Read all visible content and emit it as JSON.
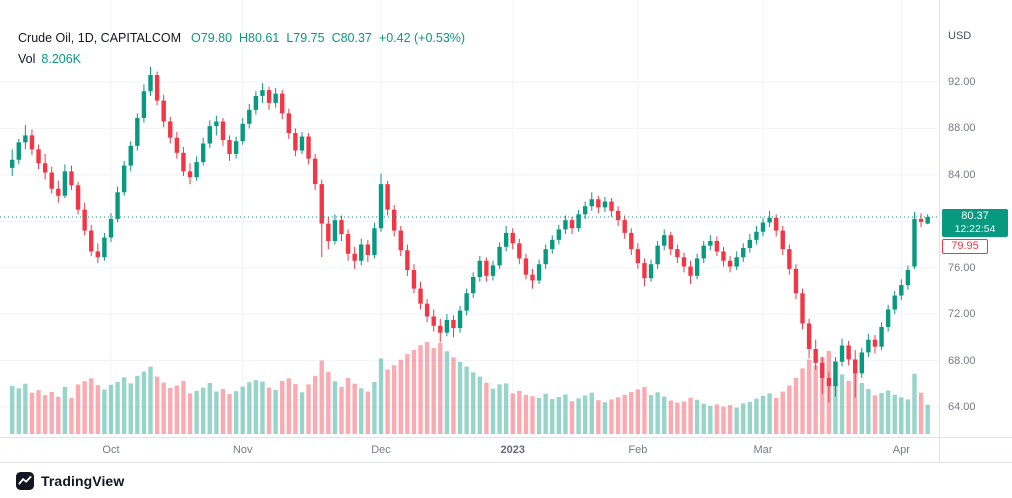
{
  "legend": {
    "title": "Crude Oil, 1D, CAPITALCOM",
    "values": [
      "O79.80",
      "H80.61",
      "L79.75",
      "C80.37",
      "+0.42 (+0.53%)"
    ],
    "vol_label": "Vol",
    "vol_value": "8.206K"
  },
  "price_axis": {
    "currency": "USD",
    "tick_labels": [
      "92.00",
      "88.00",
      "84.00",
      "76.00",
      "72.00",
      "68.00",
      "64.00"
    ],
    "last_price_badge": "80.37",
    "countdown": "12:22:54",
    "prev_close_badge": "79.95"
  },
  "footer": {
    "brand": "TradingView"
  },
  "colors": {
    "up": "#089981",
    "down": "#f23645",
    "grid": "#f0f3fa",
    "border": "#e0e3eb",
    "axis_text": "#787b86",
    "title_text": "#131722"
  },
  "chart_data": {
    "type": "candlestick",
    "title": "Crude Oil, 1D, CAPITALCOM",
    "timeframe": "1D",
    "exchange": "CAPITALCOM",
    "ylabel": "USD",
    "price_grid": [
      64,
      68,
      72,
      76,
      80,
      84,
      88,
      92
    ],
    "ylim": [
      62.6,
      96.4
    ],
    "x_labels": [
      {
        "label": "Oct",
        "index": 15
      },
      {
        "label": "Nov",
        "index": 35
      },
      {
        "label": "Dec",
        "index": 56
      },
      {
        "label": "2023",
        "index": 76,
        "year": true
      },
      {
        "label": "Feb",
        "index": 95
      },
      {
        "label": "Mar",
        "index": 114
      },
      {
        "label": "Apr",
        "index": 135
      }
    ],
    "last_price": 80.37,
    "prev_close": 79.95,
    "change": 0.42,
    "change_pct": 0.53,
    "last_volume_k": 8.206,
    "volume_unit": "K",
    "columns": [
      "open",
      "high",
      "low",
      "close",
      "volume_k"
    ],
    "candles": [
      [
        84.6,
        86.2,
        83.9,
        85.3,
        13.5
      ],
      [
        85.3,
        87.1,
        84.9,
        86.8,
        12.8
      ],
      [
        86.8,
        88.3,
        86.2,
        87.4,
        14.1
      ],
      [
        87.4,
        87.9,
        85.7,
        86.2,
        11.6
      ],
      [
        86.2,
        86.6,
        84.5,
        85.0,
        12.3
      ],
      [
        85.0,
        85.8,
        83.6,
        84.2,
        10.9
      ],
      [
        84.2,
        84.7,
        82.4,
        82.8,
        11.8
      ],
      [
        82.8,
        83.5,
        81.6,
        82.2,
        10.4
      ],
      [
        82.2,
        84.9,
        82.0,
        84.3,
        13.2
      ],
      [
        84.3,
        84.8,
        82.7,
        83.1,
        10.1
      ],
      [
        83.1,
        83.4,
        80.6,
        81.0,
        13.9
      ],
      [
        81.0,
        81.6,
        78.8,
        79.2,
        14.8
      ],
      [
        79.2,
        79.7,
        77.0,
        77.4,
        15.6
      ],
      [
        77.4,
        78.1,
        76.4,
        76.9,
        13.7
      ],
      [
        76.9,
        79.0,
        76.6,
        78.6,
        12.5
      ],
      [
        78.6,
        80.7,
        78.2,
        80.2,
        13.8
      ],
      [
        80.2,
        83.0,
        79.9,
        82.5,
        14.6
      ],
      [
        82.5,
        85.2,
        82.2,
        84.8,
        15.9
      ],
      [
        84.8,
        86.9,
        84.3,
        86.5,
        14.2
      ],
      [
        86.5,
        89.3,
        86.1,
        88.9,
        16.3
      ],
      [
        88.9,
        91.8,
        88.5,
        91.2,
        17.5
      ],
      [
        91.2,
        93.3,
        90.8,
        92.6,
        18.9
      ],
      [
        92.6,
        92.9,
        90.0,
        90.4,
        16.1
      ],
      [
        90.4,
        90.9,
        88.1,
        88.6,
        14.4
      ],
      [
        88.6,
        89.0,
        86.7,
        87.2,
        12.9
      ],
      [
        87.2,
        87.7,
        85.4,
        85.9,
        13.6
      ],
      [
        85.9,
        86.4,
        83.9,
        84.3,
        14.9
      ],
      [
        84.3,
        85.0,
        83.2,
        83.8,
        11.4
      ],
      [
        83.8,
        85.6,
        83.5,
        85.1,
        12.1
      ],
      [
        85.1,
        87.2,
        84.8,
        86.7,
        13.0
      ],
      [
        86.7,
        88.7,
        86.3,
        88.2,
        14.3
      ],
      [
        88.2,
        89.1,
        87.4,
        88.6,
        11.9
      ],
      [
        88.6,
        88.9,
        86.5,
        87.0,
        12.6
      ],
      [
        87.0,
        87.4,
        85.2,
        85.8,
        11.2
      ],
      [
        85.8,
        87.3,
        85.4,
        86.9,
        12.0
      ],
      [
        86.9,
        88.9,
        86.6,
        88.4,
        13.3
      ],
      [
        88.4,
        90.1,
        88.0,
        89.6,
        14.5
      ],
      [
        89.6,
        91.2,
        89.2,
        90.8,
        15.1
      ],
      [
        90.8,
        91.9,
        90.2,
        91.3,
        14.7
      ],
      [
        91.3,
        91.6,
        89.6,
        90.2,
        13.0
      ],
      [
        90.2,
        91.5,
        89.8,
        91.0,
        12.4
      ],
      [
        91.0,
        91.3,
        88.8,
        89.3,
        14.9
      ],
      [
        89.3,
        89.7,
        87.1,
        87.6,
        15.6
      ],
      [
        87.6,
        88.0,
        85.6,
        86.1,
        14.0
      ],
      [
        86.1,
        87.7,
        85.8,
        87.3,
        11.7
      ],
      [
        87.3,
        87.6,
        84.9,
        85.4,
        13.9
      ],
      [
        85.4,
        85.8,
        82.7,
        83.2,
        16.3
      ],
      [
        83.2,
        83.6,
        76.9,
        79.8,
        20.6
      ],
      [
        79.8,
        80.4,
        77.6,
        78.3,
        17.4
      ],
      [
        78.3,
        80.6,
        78.0,
        80.1,
        14.8
      ],
      [
        80.1,
        80.5,
        78.3,
        78.9,
        13.2
      ],
      [
        78.9,
        79.3,
        76.6,
        77.2,
        15.7
      ],
      [
        77.2,
        77.8,
        75.9,
        76.6,
        14.1
      ],
      [
        76.6,
        78.5,
        76.2,
        78.0,
        12.8
      ],
      [
        78.0,
        78.4,
        76.5,
        77.1,
        11.9
      ],
      [
        77.1,
        79.9,
        76.8,
        79.4,
        14.6
      ],
      [
        79.4,
        84.1,
        79.1,
        83.2,
        21.2
      ],
      [
        83.2,
        83.5,
        80.5,
        81.0,
        18.1
      ],
      [
        81.0,
        81.4,
        78.7,
        79.2,
        19.3
      ],
      [
        79.2,
        79.6,
        77.0,
        77.5,
        20.8
      ],
      [
        77.5,
        78.0,
        75.3,
        75.8,
        22.4
      ],
      [
        75.8,
        76.3,
        73.8,
        74.2,
        23.6
      ],
      [
        74.2,
        74.8,
        72.4,
        72.9,
        24.9
      ],
      [
        72.9,
        73.3,
        71.3,
        71.8,
        25.8
      ],
      [
        71.8,
        72.4,
        70.5,
        71.0,
        24.1
      ],
      [
        71.0,
        71.6,
        69.6,
        70.4,
        25.6
      ],
      [
        70.4,
        72.0,
        70.1,
        71.5,
        23.2
      ],
      [
        71.5,
        71.9,
        70.0,
        70.8,
        21.5
      ],
      [
        70.8,
        72.7,
        70.4,
        72.3,
        20.2
      ],
      [
        72.3,
        74.2,
        71.9,
        73.8,
        18.9
      ],
      [
        73.8,
        75.6,
        73.4,
        75.2,
        17.3
      ],
      [
        75.2,
        77.0,
        74.8,
        76.6,
        16.1
      ],
      [
        76.6,
        76.9,
        74.8,
        75.3,
        14.4
      ],
      [
        75.3,
        76.6,
        74.9,
        76.2,
        12.7
      ],
      [
        76.2,
        78.2,
        75.9,
        77.8,
        13.9
      ],
      [
        77.8,
        79.6,
        77.4,
        79.0,
        14.2
      ],
      [
        79.0,
        79.4,
        77.6,
        78.1,
        11.4
      ],
      [
        78.1,
        78.5,
        76.3,
        76.8,
        12.1
      ],
      [
        76.8,
        77.2,
        75.0,
        75.4,
        11.0
      ],
      [
        75.4,
        75.9,
        74.2,
        74.9,
        10.6
      ],
      [
        74.9,
        76.7,
        74.6,
        76.3,
        10.1
      ],
      [
        76.3,
        78.0,
        75.9,
        77.6,
        11.3
      ],
      [
        77.6,
        78.8,
        77.2,
        78.4,
        9.8
      ],
      [
        78.4,
        79.7,
        78.0,
        79.3,
        10.4
      ],
      [
        79.3,
        80.5,
        78.9,
        80.1,
        11.1
      ],
      [
        80.1,
        80.4,
        78.9,
        79.4,
        9.2
      ],
      [
        79.4,
        81.0,
        79.1,
        80.6,
        10.0
      ],
      [
        80.6,
        81.7,
        80.2,
        81.3,
        10.8
      ],
      [
        81.3,
        82.5,
        80.9,
        81.9,
        11.6
      ],
      [
        81.9,
        82.2,
        80.7,
        81.2,
        9.5
      ],
      [
        81.2,
        82.1,
        80.8,
        81.7,
        8.9
      ],
      [
        81.7,
        82.0,
        80.4,
        80.9,
        9.7
      ],
      [
        80.9,
        81.3,
        79.6,
        80.1,
        10.3
      ],
      [
        80.1,
        80.5,
        78.5,
        79.0,
        11.0
      ],
      [
        79.0,
        79.4,
        77.1,
        77.6,
        11.8
      ],
      [
        77.6,
        78.1,
        75.9,
        76.4,
        12.5
      ],
      [
        76.4,
        76.8,
        74.4,
        75.1,
        13.2
      ],
      [
        75.1,
        76.7,
        74.8,
        76.3,
        10.9
      ],
      [
        76.3,
        78.3,
        75.9,
        77.9,
        11.7
      ],
      [
        77.9,
        79.3,
        77.5,
        78.8,
        10.5
      ],
      [
        78.8,
        79.1,
        77.1,
        77.6,
        9.4
      ],
      [
        77.6,
        78.0,
        76.4,
        76.9,
        8.8
      ],
      [
        76.9,
        77.3,
        75.6,
        76.1,
        9.1
      ],
      [
        76.1,
        76.6,
        74.6,
        75.3,
        10.2
      ],
      [
        75.3,
        77.2,
        75.0,
        76.8,
        9.6
      ],
      [
        76.8,
        78.3,
        76.4,
        77.9,
        8.5
      ],
      [
        77.9,
        78.8,
        77.5,
        78.3,
        7.9
      ],
      [
        78.3,
        78.7,
        77.0,
        77.4,
        8.3
      ],
      [
        77.4,
        77.8,
        76.1,
        76.6,
        7.7
      ],
      [
        76.6,
        77.0,
        75.6,
        76.1,
        8.1
      ],
      [
        76.1,
        77.4,
        75.8,
        76.9,
        7.4
      ],
      [
        76.9,
        78.1,
        76.5,
        77.7,
        8.6
      ],
      [
        77.7,
        78.9,
        77.3,
        78.4,
        9.0
      ],
      [
        78.4,
        79.6,
        78.0,
        79.1,
        9.9
      ],
      [
        79.1,
        80.3,
        78.7,
        79.9,
        10.7
      ],
      [
        79.9,
        80.9,
        79.5,
        80.3,
        11.4
      ],
      [
        80.3,
        80.6,
        78.7,
        79.2,
        10.1
      ],
      [
        79.2,
        79.6,
        77.1,
        77.6,
        11.9
      ],
      [
        77.6,
        78.0,
        75.4,
        75.9,
        13.6
      ],
      [
        75.9,
        76.3,
        73.3,
        73.8,
        15.8
      ],
      [
        73.8,
        74.2,
        70.7,
        71.2,
        18.4
      ],
      [
        71.2,
        71.6,
        68.2,
        69.0,
        20.9
      ],
      [
        69.0,
        69.8,
        67.2,
        67.8,
        19.2
      ],
      [
        67.8,
        68.3,
        65.1,
        66.5,
        21.6
      ],
      [
        66.5,
        67.0,
        64.4,
        65.8,
        23.3
      ],
      [
        65.8,
        68.3,
        64.9,
        67.9,
        20.4
      ],
      [
        67.9,
        69.9,
        67.5,
        69.3,
        16.7
      ],
      [
        69.3,
        69.7,
        67.6,
        68.1,
        14.9
      ],
      [
        68.1,
        68.9,
        64.8,
        66.9,
        17.8
      ],
      [
        66.9,
        69.1,
        66.5,
        68.7,
        14.3
      ],
      [
        68.7,
        70.3,
        68.3,
        69.8,
        12.6
      ],
      [
        69.8,
        70.2,
        68.6,
        69.2,
        10.8
      ],
      [
        69.2,
        71.3,
        68.9,
        70.9,
        11.5
      ],
      [
        70.9,
        72.8,
        70.5,
        72.4,
        12.2
      ],
      [
        72.4,
        74.0,
        72.0,
        73.6,
        11.0
      ],
      [
        73.6,
        75.0,
        73.2,
        74.5,
        10.3
      ],
      [
        74.5,
        76.2,
        74.1,
        75.8,
        9.7
      ],
      [
        76.1,
        80.8,
        75.9,
        80.2,
        16.9
      ],
      [
        80.2,
        80.7,
        79.5,
        79.95,
        11.6
      ],
      [
        79.8,
        80.61,
        79.75,
        80.37,
        8.206
      ]
    ]
  }
}
